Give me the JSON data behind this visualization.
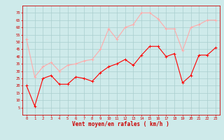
{
  "x": [
    0,
    1,
    2,
    3,
    4,
    5,
    6,
    7,
    8,
    9,
    10,
    11,
    12,
    13,
    14,
    15,
    16,
    17,
    18,
    19,
    20,
    21,
    22,
    23
  ],
  "wind_avg": [
    20,
    6,
    25,
    27,
    21,
    21,
    26,
    25,
    23,
    29,
    33,
    35,
    38,
    34,
    41,
    47,
    47,
    40,
    42,
    22,
    27,
    41,
    41,
    46
  ],
  "wind_gust": [
    52,
    26,
    33,
    36,
    30,
    34,
    35,
    37,
    38,
    45,
    59,
    52,
    60,
    62,
    70,
    70,
    66,
    59,
    59,
    44,
    60,
    62,
    65,
    65
  ],
  "avg_color": "#ff0000",
  "gust_color": "#ffaaaa",
  "bg_color": "#ceeaea",
  "grid_color": "#aacece",
  "ylim": [
    0,
    75
  ],
  "yticks": [
    5,
    10,
    15,
    20,
    25,
    30,
    35,
    40,
    45,
    50,
    55,
    60,
    65,
    70
  ],
  "xticks": [
    0,
    1,
    2,
    3,
    4,
    5,
    6,
    7,
    8,
    9,
    10,
    11,
    12,
    13,
    14,
    15,
    16,
    17,
    18,
    19,
    20,
    21,
    22,
    23
  ],
  "xlabel": "Vent moyen/en rafales ( km/h )",
  "xlabel_color": "#cc0000",
  "tick_color": "#cc0000",
  "spine_color": "#cc0000",
  "linewidth": 0.8,
  "markersize": 2.5,
  "tick_fontsize": 4.0,
  "xlabel_fontsize": 5.5
}
